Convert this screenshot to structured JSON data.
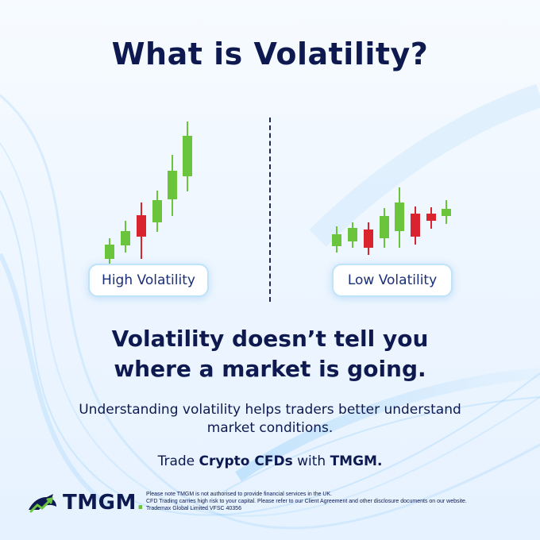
{
  "title": "What is Volatility?",
  "labels": {
    "high": "High Volatility",
    "low": "Low Volatility"
  },
  "headline": {
    "line1": "Volatility doesn’t tell you",
    "line2": "where a market is going."
  },
  "body": {
    "line1": "Understanding volatility helps traders better understand",
    "line2": "market conditions."
  },
  "cta": {
    "prefix": "Trade ",
    "bold1": "Crypto CFDs",
    "middle": " with ",
    "bold2": "TMGM."
  },
  "logo": {
    "text": "TMGM",
    "dot": "."
  },
  "disclaimer": {
    "line1": "Please note TMGM is not authorised to provide financial services in the UK.",
    "line2": "CFD Trading carries high risk to your capital. Please refer to our Client Agreement and other disclosure documents on our website.",
    "line3": "Trademax Global Limited VFSC 40356"
  },
  "colors": {
    "navy": "#0e1a4f",
    "up": "#6ac43c",
    "down": "#d9232e",
    "accent": "#3fa9f5"
  },
  "icons": {
    "logo": "bull-logo-icon",
    "divider": "dashed-divider"
  }
}
